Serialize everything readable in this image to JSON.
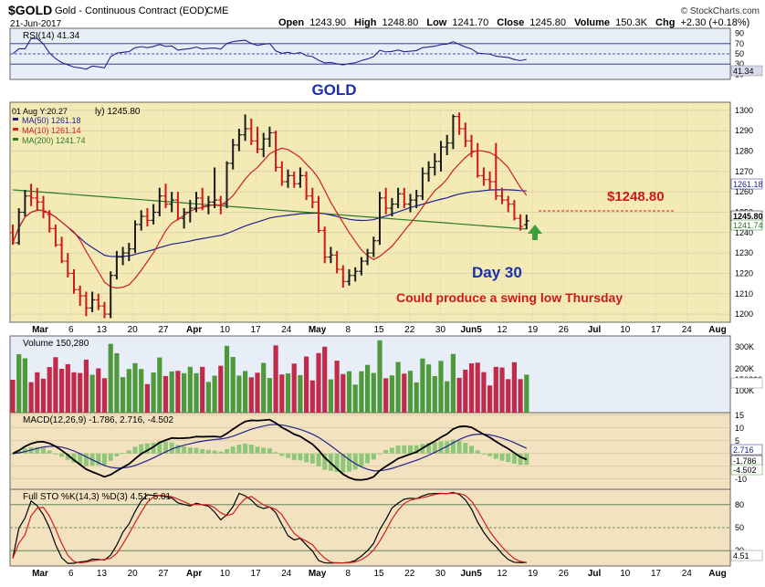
{
  "header": {
    "symbol": "$GOLD",
    "name": "Gold - Continuous Contract (EOD)",
    "exchange": "CME",
    "date": "21-Jun-2017",
    "open_label": "Open",
    "open": "1243.90",
    "high_label": "High",
    "high": "1248.80",
    "low_label": "Low",
    "low": "1241.70",
    "close_label": "Close",
    "close": "1245.80",
    "volume_label": "Volume",
    "volume": "150.3K",
    "chg_label": "Chg",
    "chg": "+2.30 (+0.18%)",
    "brand": "© StockCharts.com"
  },
  "colors": {
    "price_bg": "#f3eab6",
    "ind_bg": "#f3e2bf",
    "up": "#1b1b1b",
    "down": "#d01818",
    "ma50": "#22228c",
    "ma10": "#d02020",
    "ma200": "#2a7a2a",
    "vol_up": "#4e9a3a",
    "vol_down": "#c22a4a"
  },
  "rsi": {
    "label": "RSI(14) 41.34",
    "value_tag": "41.34",
    "ticks": [
      "90",
      "70",
      "50",
      "30",
      "10"
    ]
  },
  "price": {
    "overlay_title": "GOLD",
    "crosshair": "01 Aug Y:20.27",
    "crosshair_tail": "ly) 1245.80",
    "ma50_label": "MA(50) 1261.18",
    "ma10_label": "MA(10) 1261.14",
    "ma200_label": "MA(200) 1241.74",
    "ticks": [
      "1300",
      "1290",
      "1280",
      "1270",
      "1260",
      "1250",
      "1240",
      "1230",
      "1220",
      "1210",
      "1200"
    ],
    "tag_ma50": "1261.18",
    "tag_close": "1245.80",
    "tag_ma200": "1241.74",
    "annotation_level": "$1248.80",
    "annotation_day": "Day 30",
    "annotation_note": "Could produce a swing low Thursday"
  },
  "volume": {
    "label": "Volume 150,280",
    "ticks": [
      "300K",
      "200K",
      "150280",
      "100K"
    ]
  },
  "macd": {
    "label": "MACD(12,26,9) -1.786, 2.716, -4.502",
    "ticks": [
      "15",
      "10",
      "5",
      "0",
      "-5",
      "-10"
    ],
    "tag_signal": "2.716",
    "tag_macd": "-1.786",
    "tag_hist": "-4.502"
  },
  "sto": {
    "label": "Full STO %K(14,3) %D(3) 4.51, 5.01",
    "ticks": [
      "80",
      "50",
      "20"
    ],
    "value_tag": "4.51"
  },
  "x_axis": [
    "Mar",
    "6",
    "13",
    "20",
    "27",
    "Apr",
    "10",
    "17",
    "24",
    "May",
    "8",
    "15",
    "22",
    "30",
    "Jun5",
    "12",
    "19",
    "26",
    "Jul",
    "10",
    "17",
    "24",
    "Aug"
  ],
  "chart_data": {
    "type": "ohlc",
    "title": "$GOLD Gold - Continuous Contract (EOD) CME",
    "date": "21-Jun-2017",
    "ohlc_last": {
      "open": 1243.9,
      "high": 1248.8,
      "low": 1241.7,
      "close": 1245.8,
      "volume": 150280
    },
    "price_ylim": [
      1196,
      1304
    ],
    "bars": [
      {
        "d": "Feb 21",
        "o": 1240,
        "h": 1244,
        "l": 1234,
        "c": 1235
      },
      {
        "d": "Feb 22",
        "o": 1235,
        "h": 1252,
        "l": 1234,
        "c": 1250
      },
      {
        "d": "Feb 23",
        "o": 1250,
        "h": 1261,
        "l": 1248,
        "c": 1258
      },
      {
        "d": "Feb 24",
        "o": 1258,
        "h": 1264,
        "l": 1253,
        "c": 1257
      },
      {
        "d": "Feb 27",
        "o": 1257,
        "h": 1262,
        "l": 1251,
        "c": 1255
      },
      {
        "d": "Feb 28",
        "o": 1255,
        "h": 1258,
        "l": 1247,
        "c": 1250
      },
      {
        "d": "Mar 1",
        "o": 1249,
        "h": 1251,
        "l": 1240,
        "c": 1242
      },
      {
        "d": "Mar 2",
        "o": 1242,
        "h": 1244,
        "l": 1233,
        "c": 1234
      },
      {
        "d": "Mar 3",
        "o": 1234,
        "h": 1238,
        "l": 1225,
        "c": 1226
      },
      {
        "d": "Mar 6",
        "o": 1226,
        "h": 1230,
        "l": 1218,
        "c": 1220
      },
      {
        "d": "Mar 7",
        "o": 1220,
        "h": 1222,
        "l": 1210,
        "c": 1212
      },
      {
        "d": "Mar 8",
        "o": 1212,
        "h": 1214,
        "l": 1204,
        "c": 1209
      },
      {
        "d": "Mar 9",
        "o": 1209,
        "h": 1211,
        "l": 1199,
        "c": 1203
      },
      {
        "d": "Mar 10",
        "o": 1203,
        "h": 1211,
        "l": 1201,
        "c": 1207
      },
      {
        "d": "Mar 13",
        "o": 1207,
        "h": 1210,
        "l": 1202,
        "c": 1204
      },
      {
        "d": "Mar 14",
        "o": 1204,
        "h": 1206,
        "l": 1198,
        "c": 1200
      },
      {
        "d": "Mar 15",
        "o": 1200,
        "h": 1221,
        "l": 1198,
        "c": 1219
      },
      {
        "d": "Mar 16",
        "o": 1219,
        "h": 1231,
        "l": 1217,
        "c": 1228
      },
      {
        "d": "Mar 17",
        "o": 1228,
        "h": 1233,
        "l": 1224,
        "c": 1230
      },
      {
        "d": "Mar 20",
        "o": 1230,
        "h": 1235,
        "l": 1226,
        "c": 1232
      },
      {
        "d": "Mar 21",
        "o": 1232,
        "h": 1246,
        "l": 1230,
        "c": 1244
      },
      {
        "d": "Mar 22",
        "o": 1244,
        "h": 1251,
        "l": 1241,
        "c": 1248
      },
      {
        "d": "Mar 23",
        "o": 1248,
        "h": 1252,
        "l": 1243,
        "c": 1246
      },
      {
        "d": "Mar 24",
        "o": 1246,
        "h": 1254,
        "l": 1244,
        "c": 1250
      },
      {
        "d": "Mar 27",
        "o": 1250,
        "h": 1262,
        "l": 1248,
        "c": 1258
      },
      {
        "d": "Mar 28",
        "o": 1258,
        "h": 1264,
        "l": 1252,
        "c": 1254
      },
      {
        "d": "Mar 29",
        "o": 1254,
        "h": 1260,
        "l": 1250,
        "c": 1256
      },
      {
        "d": "Mar 30",
        "o": 1256,
        "h": 1260,
        "l": 1246,
        "c": 1247
      },
      {
        "d": "Mar 31",
        "o": 1247,
        "h": 1252,
        "l": 1242,
        "c": 1250
      },
      {
        "d": "Apr 3",
        "o": 1250,
        "h": 1256,
        "l": 1245,
        "c": 1252
      },
      {
        "d": "Apr 4",
        "o": 1252,
        "h": 1260,
        "l": 1250,
        "c": 1257
      },
      {
        "d": "Apr 5",
        "o": 1257,
        "h": 1262,
        "l": 1251,
        "c": 1253
      },
      {
        "d": "Apr 6",
        "o": 1253,
        "h": 1258,
        "l": 1249,
        "c": 1255
      },
      {
        "d": "Apr 7",
        "o": 1255,
        "h": 1272,
        "l": 1252,
        "c": 1256
      },
      {
        "d": "Apr 10",
        "o": 1256,
        "h": 1258,
        "l": 1249,
        "c": 1254
      },
      {
        "d": "Apr 11",
        "o": 1254,
        "h": 1275,
        "l": 1252,
        "c": 1274
      },
      {
        "d": "Apr 12",
        "o": 1274,
        "h": 1286,
        "l": 1271,
        "c": 1283
      },
      {
        "d": "Apr 13",
        "o": 1283,
        "h": 1291,
        "l": 1280,
        "c": 1288
      },
      {
        "d": "Apr 17",
        "o": 1288,
        "h": 1298,
        "l": 1285,
        "c": 1291
      },
      {
        "d": "Apr 18",
        "o": 1291,
        "h": 1296,
        "l": 1283,
        "c": 1285
      },
      {
        "d": "Apr 19",
        "o": 1285,
        "h": 1292,
        "l": 1279,
        "c": 1281
      },
      {
        "d": "Apr 20",
        "o": 1281,
        "h": 1289,
        "l": 1277,
        "c": 1286
      },
      {
        "d": "Apr 21",
        "o": 1286,
        "h": 1292,
        "l": 1282,
        "c": 1289
      },
      {
        "d": "Apr 24",
        "o": 1289,
        "h": 1290,
        "l": 1270,
        "c": 1272
      },
      {
        "d": "Apr 25",
        "o": 1272,
        "h": 1275,
        "l": 1263,
        "c": 1265
      },
      {
        "d": "Apr 26",
        "o": 1265,
        "h": 1271,
        "l": 1262,
        "c": 1268
      },
      {
        "d": "Apr 27",
        "o": 1268,
        "h": 1270,
        "l": 1262,
        "c": 1264
      },
      {
        "d": "Apr 28",
        "o": 1264,
        "h": 1272,
        "l": 1262,
        "c": 1268
      },
      {
        "d": "May 1",
        "o": 1268,
        "h": 1270,
        "l": 1256,
        "c": 1258
      },
      {
        "d": "May 2",
        "o": 1258,
        "h": 1262,
        "l": 1252,
        "c": 1255
      },
      {
        "d": "May 3",
        "o": 1255,
        "h": 1258,
        "l": 1240,
        "c": 1241
      },
      {
        "d": "May 4",
        "o": 1241,
        "h": 1243,
        "l": 1225,
        "c": 1228
      },
      {
        "d": "May 5",
        "o": 1228,
        "h": 1233,
        "l": 1225,
        "c": 1229
      },
      {
        "d": "May 8",
        "o": 1229,
        "h": 1231,
        "l": 1220,
        "c": 1222
      },
      {
        "d": "May 9",
        "o": 1222,
        "h": 1224,
        "l": 1213,
        "c": 1216
      },
      {
        "d": "May 10",
        "o": 1216,
        "h": 1222,
        "l": 1214,
        "c": 1219
      },
      {
        "d": "May 11",
        "o": 1219,
        "h": 1223,
        "l": 1216,
        "c": 1221
      },
      {
        "d": "May 12",
        "o": 1221,
        "h": 1228,
        "l": 1219,
        "c": 1226
      },
      {
        "d": "May 15",
        "o": 1226,
        "h": 1232,
        "l": 1224,
        "c": 1230
      },
      {
        "d": "May 16",
        "o": 1230,
        "h": 1238,
        "l": 1228,
        "c": 1236
      },
      {
        "d": "May 17",
        "o": 1236,
        "h": 1260,
        "l": 1234,
        "c": 1257
      },
      {
        "d": "May 18",
        "o": 1257,
        "h": 1262,
        "l": 1249,
        "c": 1252
      },
      {
        "d": "May 19",
        "o": 1252,
        "h": 1257,
        "l": 1248,
        "c": 1254
      },
      {
        "d": "May 22",
        "o": 1254,
        "h": 1262,
        "l": 1252,
        "c": 1259
      },
      {
        "d": "May 23",
        "o": 1259,
        "h": 1262,
        "l": 1252,
        "c": 1254
      },
      {
        "d": "May 24",
        "o": 1254,
        "h": 1259,
        "l": 1250,
        "c": 1256
      },
      {
        "d": "May 25",
        "o": 1256,
        "h": 1261,
        "l": 1252,
        "c": 1258
      },
      {
        "d": "May 26",
        "o": 1258,
        "h": 1272,
        "l": 1256,
        "c": 1269
      },
      {
        "d": "May 30",
        "o": 1269,
        "h": 1275,
        "l": 1265,
        "c": 1272
      },
      {
        "d": "May 31",
        "o": 1272,
        "h": 1279,
        "l": 1268,
        "c": 1275
      },
      {
        "d": "Jun 1",
        "o": 1275,
        "h": 1285,
        "l": 1270,
        "c": 1282
      },
      {
        "d": "Jun 2",
        "o": 1282,
        "h": 1288,
        "l": 1278,
        "c": 1284
      },
      {
        "d": "Jun 5",
        "o": 1284,
        "h": 1298,
        "l": 1281,
        "c": 1297
      },
      {
        "d": "Jun 6",
        "o": 1297,
        "h": 1299,
        "l": 1288,
        "c": 1291
      },
      {
        "d": "Jun 7",
        "o": 1291,
        "h": 1294,
        "l": 1282,
        "c": 1285
      },
      {
        "d": "Jun 8",
        "o": 1285,
        "h": 1288,
        "l": 1277,
        "c": 1280
      },
      {
        "d": "Jun 9",
        "o": 1280,
        "h": 1284,
        "l": 1267,
        "c": 1268
      },
      {
        "d": "Jun 12",
        "o": 1268,
        "h": 1272,
        "l": 1263,
        "c": 1266
      },
      {
        "d": "Jun 13",
        "o": 1266,
        "h": 1270,
        "l": 1261,
        "c": 1265
      },
      {
        "d": "Jun 14",
        "o": 1265,
        "h": 1284,
        "l": 1256,
        "c": 1258
      },
      {
        "d": "Jun 15",
        "o": 1258,
        "h": 1262,
        "l": 1254,
        "c": 1256
      },
      {
        "d": "Jun 16",
        "o": 1256,
        "h": 1258,
        "l": 1250,
        "c": 1254
      },
      {
        "d": "Jun 19",
        "o": 1254,
        "h": 1256,
        "l": 1246,
        "c": 1247
      },
      {
        "d": "Jun 20",
        "o": 1247,
        "h": 1249,
        "l": 1241,
        "c": 1243
      },
      {
        "d": "Jun 21",
        "o": 1243.9,
        "h": 1248.8,
        "l": 1241.7,
        "c": 1245.8
      }
    ],
    "annotations": [
      "$1248.80",
      "Day 30",
      "Could produce a swing low Thursday",
      "GOLD"
    ]
  }
}
